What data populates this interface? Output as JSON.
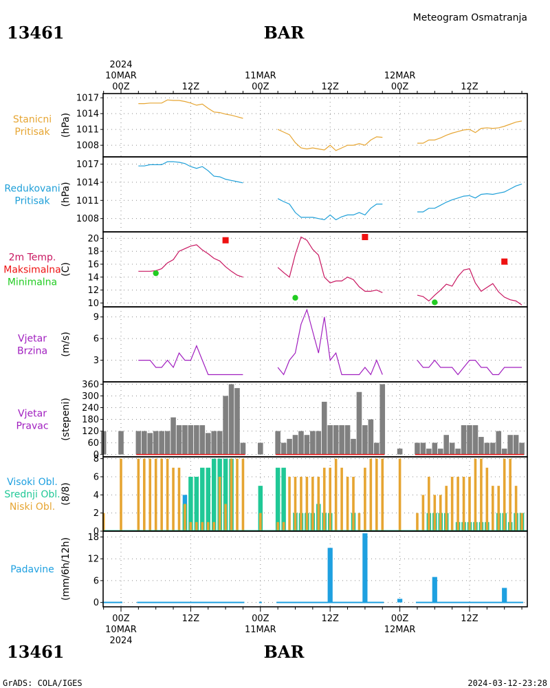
{
  "header": {
    "station_id": "13461",
    "station_name": "BAR",
    "title": "Meteogram Osmatranja"
  },
  "footer": {
    "credit": "GrADS: COLA/IGES",
    "timestamp": "2024-03-12-23:28"
  },
  "time_axis": {
    "top_labels": [
      {
        "hour": 0,
        "lines": [
          "2024",
          "10MAR",
          "00Z"
        ]
      },
      {
        "hour": 12,
        "lines": [
          "12Z"
        ]
      },
      {
        "hour": 24,
        "lines": [
          "11MAR",
          "00Z"
        ]
      },
      {
        "hour": 36,
        "lines": [
          "12Z"
        ]
      },
      {
        "hour": 48,
        "lines": [
          "12MAR",
          "00Z"
        ]
      },
      {
        "hour": 60,
        "lines": [
          "12Z"
        ]
      }
    ],
    "bottom_labels": [
      {
        "hour": 0,
        "lines": [
          "00Z",
          "10MAR",
          "2024"
        ]
      },
      {
        "hour": 12,
        "lines": [
          "12Z"
        ]
      },
      {
        "hour": 24,
        "lines": [
          "00Z",
          "11MAR"
        ]
      },
      {
        "hour": 36,
        "lines": [
          "12Z"
        ]
      },
      {
        "hour": 48,
        "lines": [
          "00Z",
          "12MAR"
        ]
      },
      {
        "hour": 60,
        "lines": [
          "12Z"
        ]
      }
    ]
  },
  "colors": {
    "station_pressure": "#e6a532",
    "reduced_pressure": "#1e9fd8",
    "temperature": "#c8155f",
    "max_marker": "#ee1111",
    "min_marker": "#22cc22",
    "wind_speed": "#a01ebf",
    "wind_dir": "#808080",
    "cloud_high": "#1ea0e0",
    "cloud_mid": "#20c896",
    "cloud_low": "#e6a532",
    "precip": "#1ea0e0",
    "precip_label": "#1ea0e0"
  },
  "chart_data": [
    {
      "type": "line",
      "panel": "station_pressure",
      "left_labels": [
        "Stanicni",
        "Pritisak"
      ],
      "ylabel": "(hPa)",
      "yticks": [
        1008,
        1011,
        1014,
        1017
      ],
      "ylim": [
        1005.8,
        1017.8
      ],
      "series": [
        {
          "x": [
            3,
            4,
            5,
            6,
            7,
            8,
            9,
            10,
            11,
            12,
            13,
            14,
            15,
            16,
            17,
            18,
            19,
            20,
            21
          ],
          "values": [
            1015.9,
            1015.9,
            1016.0,
            1016.0,
            1016.0,
            1016.6,
            1016.5,
            1016.5,
            1016.3,
            1016.0,
            1015.6,
            1015.8,
            1015.0,
            1014.3,
            1014.2,
            1013.9,
            1013.7,
            1013.4,
            1013.1
          ]
        },
        {
          "x": [
            27,
            28,
            29,
            30,
            31,
            32,
            33,
            34,
            35,
            36,
            37,
            38,
            39,
            40,
            41,
            42,
            43,
            44,
            45
          ],
          "values": [
            1011.0,
            1010.5,
            1010.0,
            1008.5,
            1007.5,
            1007.3,
            1007.5,
            1007.3,
            1007.1,
            1008.0,
            1007.0,
            1007.5,
            1008.0,
            1008.0,
            1008.3,
            1008.0,
            1009.0,
            1009.6,
            1009.5
          ]
        },
        {
          "x": [
            51,
            52,
            53,
            54,
            55,
            56,
            57,
            58,
            59,
            60,
            61,
            62,
            63,
            64,
            65,
            66,
            67,
            68,
            69
          ],
          "values": [
            1008.4,
            1008.4,
            1009.0,
            1009.0,
            1009.4,
            1009.9,
            1010.3,
            1010.6,
            1010.9,
            1011.0,
            1010.4,
            1011.2,
            1011.3,
            1011.2,
            1011.3,
            1011.6,
            1012.0,
            1012.4,
            1012.6
          ]
        }
      ]
    },
    {
      "type": "line",
      "panel": "reduced_pressure",
      "left_labels": [
        "Redukovani",
        "Pritisak"
      ],
      "ylabel": "(hPa)",
      "yticks": [
        1008,
        1011,
        1014,
        1017
      ],
      "ylim": [
        1005.8,
        1018.2
      ],
      "series": [
        {
          "x": [
            3,
            4,
            5,
            6,
            7,
            8,
            9,
            10,
            11,
            12,
            13,
            14,
            15,
            16,
            17,
            18,
            19,
            20,
            21
          ],
          "values": [
            1016.7,
            1016.7,
            1016.9,
            1016.9,
            1016.9,
            1017.4,
            1017.4,
            1017.3,
            1017.1,
            1016.6,
            1016.3,
            1016.6,
            1015.9,
            1015.0,
            1014.9,
            1014.5,
            1014.3,
            1014.1,
            1013.9
          ]
        },
        {
          "x": [
            27,
            28,
            29,
            30,
            31,
            32,
            33,
            34,
            35,
            36,
            37,
            38,
            39,
            40,
            41,
            42,
            43,
            44,
            45
          ],
          "values": [
            1011.3,
            1010.8,
            1010.4,
            1009.0,
            1008.2,
            1008.2,
            1008.2,
            1008.0,
            1007.8,
            1008.6,
            1007.8,
            1008.3,
            1008.6,
            1008.6,
            1009.0,
            1008.6,
            1009.7,
            1010.4,
            1010.4
          ]
        },
        {
          "x": [
            51,
            52,
            53,
            54,
            55,
            56,
            57,
            58,
            59,
            60,
            61,
            62,
            63,
            64,
            65,
            66,
            67,
            68,
            69
          ],
          "values": [
            1009.1,
            1009.1,
            1009.7,
            1009.7,
            1010.2,
            1010.7,
            1011.1,
            1011.4,
            1011.7,
            1011.8,
            1011.4,
            1012.0,
            1012.1,
            1012.0,
            1012.2,
            1012.4,
            1012.9,
            1013.4,
            1013.7
          ]
        }
      ]
    },
    {
      "type": "line",
      "panel": "temperature",
      "left_labels": [
        "2m Temp.",
        "Maksimalna",
        "Minimalna"
      ],
      "ylabel": "(C)",
      "yticks": [
        10,
        12,
        14,
        16,
        18,
        20
      ],
      "ylim": [
        9.4,
        21.0
      ],
      "series": [
        {
          "x": [
            3,
            4,
            5,
            6,
            7,
            8,
            9,
            10,
            11,
            12,
            13,
            14,
            15,
            16,
            17,
            18,
            19,
            20,
            21
          ],
          "values": [
            14.9,
            14.9,
            14.9,
            15.0,
            15.3,
            16.2,
            16.7,
            18.0,
            18.4,
            18.8,
            19.0,
            18.2,
            17.6,
            16.9,
            16.5,
            15.6,
            14.9,
            14.3,
            14.0
          ]
        },
        {
          "x": [
            27,
            28,
            29,
            30,
            31,
            32,
            33,
            34,
            35,
            36,
            37,
            38,
            39,
            40,
            41,
            42,
            43,
            44,
            45
          ],
          "values": [
            15.5,
            14.7,
            14.0,
            17.5,
            20.2,
            19.7,
            18.3,
            17.4,
            14.0,
            13.1,
            13.4,
            13.4,
            14.0,
            13.6,
            12.5,
            11.8,
            11.8,
            12.0,
            11.6
          ]
        },
        {
          "x": [
            51,
            52,
            53,
            54,
            55,
            56,
            57,
            58,
            59,
            60,
            61,
            62,
            63,
            64,
            65,
            66,
            67,
            68,
            69
          ],
          "values": [
            11.2,
            11.0,
            10.3,
            11.2,
            12.0,
            12.9,
            12.6,
            14.1,
            15.1,
            15.3,
            13.1,
            11.8,
            12.4,
            13.0,
            11.7,
            10.9,
            10.5,
            10.3,
            9.7
          ]
        }
      ],
      "markers": [
        {
          "kind": "max",
          "x": 18,
          "value": 19.7
        },
        {
          "kind": "min",
          "x": 6,
          "value": 14.6
        },
        {
          "kind": "max",
          "x": 42,
          "value": 20.2
        },
        {
          "kind": "min",
          "x": 30,
          "value": 10.8
        },
        {
          "kind": "max",
          "x": 66,
          "value": 16.4
        },
        {
          "kind": "min",
          "x": 54,
          "value": 10.1
        }
      ]
    },
    {
      "type": "line",
      "panel": "wind_speed",
      "left_labels": [
        "Vjetar",
        "Brzina"
      ],
      "ylabel": "(m/s)",
      "yticks": [
        3,
        6,
        9
      ],
      "ylim": [
        0,
        10.4
      ],
      "series": [
        {
          "x": [
            3,
            4,
            5,
            6,
            7,
            8,
            9,
            10,
            11,
            12,
            13,
            14,
            15,
            16,
            17,
            18,
            19,
            20,
            21
          ],
          "values": [
            3,
            3,
            3,
            2,
            2,
            3,
            2,
            4,
            3,
            3,
            5,
            3,
            1,
            1,
            1,
            1,
            1,
            1,
            1
          ]
        },
        {
          "x": [
            27,
            28,
            29,
            30,
            31,
            32,
            33,
            34,
            35,
            36,
            37,
            38,
            39,
            40,
            41,
            42,
            43,
            44,
            45
          ],
          "values": [
            2,
            1,
            3,
            4,
            8,
            10,
            7,
            4,
            9,
            3,
            4,
            1,
            1,
            1,
            1,
            2,
            1,
            3,
            1
          ]
        },
        {
          "x": [
            51,
            52,
            53,
            54,
            55,
            56,
            57,
            58,
            59,
            60,
            61,
            62,
            63,
            64,
            65,
            66,
            67,
            68,
            69
          ],
          "values": [
            3,
            2,
            2,
            3,
            2,
            2,
            2,
            1,
            2,
            3,
            3,
            2,
            2,
            1,
            1,
            2,
            2,
            2,
            2
          ]
        }
      ]
    },
    {
      "type": "bar",
      "panel": "wind_direction",
      "left_labels": [
        "Vjetar",
        "Pravac"
      ],
      "ylabel": "(stepeni)",
      "yticks": [
        0,
        60,
        120,
        180,
        240,
        300,
        360
      ],
      "ylim": [
        -12,
        372
      ],
      "x": [
        -3,
        0,
        3,
        4,
        5,
        6,
        7,
        8,
        9,
        10,
        11,
        12,
        13,
        14,
        15,
        16,
        17,
        18,
        19,
        20,
        21,
        24,
        27,
        28,
        29,
        30,
        31,
        32,
        33,
        34,
        35,
        36,
        37,
        38,
        39,
        40,
        41,
        42,
        43,
        44,
        45,
        48,
        51,
        52,
        53,
        54,
        55,
        56,
        57,
        58,
        59,
        60,
        61,
        62,
        63,
        64,
        65,
        66,
        67,
        68,
        69
      ],
      "values": [
        120,
        120,
        120,
        120,
        110,
        120,
        120,
        120,
        190,
        150,
        150,
        150,
        150,
        150,
        110,
        120,
        120,
        300,
        360,
        340,
        60,
        60,
        120,
        60,
        80,
        100,
        120,
        100,
        120,
        120,
        270,
        150,
        150,
        150,
        150,
        80,
        320,
        150,
        180,
        60,
        360,
        30,
        60,
        60,
        30,
        60,
        30,
        100,
        60,
        30,
        150,
        150,
        150,
        90,
        60,
        60,
        120,
        30,
        100,
        100,
        60
      ]
    },
    {
      "type": "bar",
      "panel": "clouds",
      "left_labels": [
        "Visoki Obl.",
        "Srednji Obl.",
        "Niski Obl."
      ],
      "ylabel": "(8/8)",
      "yticks": [
        0,
        2,
        4,
        6,
        8
      ],
      "ylim": [
        0,
        8.2
      ],
      "x": [
        -3,
        0,
        3,
        4,
        5,
        6,
        7,
        8,
        9,
        10,
        11,
        12,
        13,
        14,
        15,
        16,
        17,
        18,
        19,
        20,
        21,
        24,
        27,
        28,
        29,
        30,
        31,
        32,
        33,
        34,
        35,
        36,
        37,
        38,
        39,
        40,
        41,
        42,
        43,
        44,
        45,
        48,
        51,
        52,
        53,
        54,
        55,
        56,
        57,
        58,
        59,
        60,
        61,
        62,
        63,
        64,
        65,
        66,
        67,
        68,
        69
      ],
      "series": [
        {
          "name": "Visoki Obl.",
          "values": [
            0,
            0,
            0,
            0,
            0,
            0,
            0,
            0,
            0,
            0,
            4,
            0,
            0,
            0,
            0,
            0,
            0,
            0,
            0,
            0,
            0,
            0,
            0,
            0,
            0,
            0,
            0,
            0,
            0,
            0,
            0,
            0,
            0,
            0,
            0,
            0,
            0,
            0,
            0,
            0,
            0,
            0,
            0,
            0,
            0,
            0,
            0,
            0,
            0,
            0,
            0,
            0,
            0,
            0,
            0,
            0,
            0,
            0,
            0,
            0,
            0
          ]
        },
        {
          "name": "Srednji Obl.",
          "values": [
            0,
            0,
            0,
            0,
            0,
            0,
            0,
            0,
            0,
            0,
            3,
            6,
            6,
            7,
            7,
            8,
            8,
            8,
            8,
            0,
            0,
            5,
            7,
            7,
            0,
            2,
            2,
            2,
            2,
            3,
            2,
            2,
            0,
            0,
            0,
            2,
            0,
            0,
            0,
            0,
            0,
            0,
            0,
            0,
            2,
            2,
            2,
            2,
            0,
            1,
            1,
            1,
            1,
            1,
            1,
            0,
            2,
            2,
            1,
            2,
            2
          ]
        },
        {
          "name": "Niski Obl.",
          "values": [
            2,
            8,
            8,
            8,
            8,
            8,
            8,
            8,
            7,
            7,
            3,
            1,
            1,
            1,
            1,
            1,
            6,
            3,
            8,
            8,
            8,
            2,
            1,
            1,
            6,
            6,
            6,
            6,
            6,
            6,
            7,
            7,
            8,
            7,
            6,
            6,
            2,
            7,
            8,
            8,
            8,
            8,
            2,
            4,
            6,
            4,
            4,
            5,
            6,
            6,
            6,
            6,
            8,
            8,
            7,
            5,
            5,
            8,
            8,
            5,
            2
          ]
        }
      ]
    },
    {
      "type": "bar",
      "panel": "precipitation",
      "left_labels": [
        "Padavine"
      ],
      "ylabel": "(mm/6h/12h)",
      "yticks": [
        0,
        6,
        12,
        18
      ],
      "ylim": [
        -1.2,
        19.6
      ],
      "x": [
        36,
        42,
        48,
        54,
        66
      ],
      "values": [
        15,
        19,
        1,
        7,
        4
      ]
    }
  ]
}
